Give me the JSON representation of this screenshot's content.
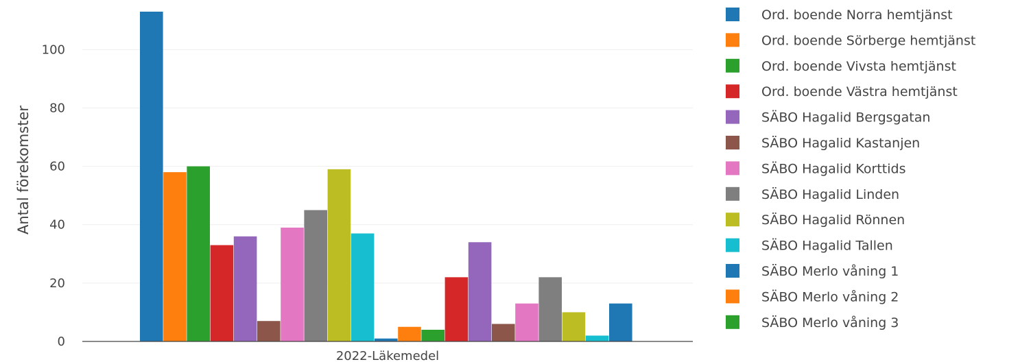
{
  "chart_data": {
    "type": "bar",
    "title": "",
    "xlabel": "",
    "ylabel": "Antal förekomster",
    "categories": [
      "2022-Läkemedel"
    ],
    "ylim": [
      0,
      113
    ],
    "yticks": [
      0,
      20,
      40,
      60,
      80,
      100
    ],
    "grid": true,
    "legend_position": "right",
    "series": [
      {
        "name": "Ord. boende Norra hemtjänst",
        "color": "#1f77b4",
        "values": [
          113
        ]
      },
      {
        "name": "Ord. boende Sörberge hemtjänst",
        "color": "#ff7f0e",
        "values": [
          58
        ]
      },
      {
        "name": "Ord. boende Vivsta hemtjänst",
        "color": "#2ca02c",
        "values": [
          60
        ]
      },
      {
        "name": "Ord. boende Västra hemtjänst",
        "color": "#d62728",
        "values": [
          33
        ]
      },
      {
        "name": "SÄBO Hagalid Bergsgatan",
        "color": "#9467bd",
        "values": [
          36
        ]
      },
      {
        "name": "SÄBO Hagalid Kastanjen",
        "color": "#8c564b",
        "values": [
          7
        ]
      },
      {
        "name": "SÄBO Hagalid Korttids",
        "color": "#e377c2",
        "values": [
          39
        ]
      },
      {
        "name": "SÄBO Hagalid Linden",
        "color": "#7f7f7f",
        "values": [
          45
        ]
      },
      {
        "name": "SÄBO Hagalid Rönnen",
        "color": "#bcbd22",
        "values": [
          59
        ]
      },
      {
        "name": "SÄBO Hagalid Tallen",
        "color": "#17becf",
        "values": [
          37
        ]
      },
      {
        "name": "SÄBO Merlo våning 1",
        "color": "#1f77b4",
        "values": [
          1
        ]
      },
      {
        "name": "SÄBO Merlo våning 2",
        "color": "#ff7f0e",
        "values": [
          5
        ]
      },
      {
        "name": "SÄBO Merlo våning 3",
        "color": "#2ca02c",
        "values": [
          4
        ]
      },
      {
        "color": "#d62728",
        "values": [
          22
        ]
      },
      {
        "color": "#9467bd",
        "values": [
          34
        ]
      },
      {
        "color": "#8c564b",
        "values": [
          6
        ]
      },
      {
        "color": "#e377c2",
        "values": [
          13
        ]
      },
      {
        "color": "#7f7f7f",
        "values": [
          22
        ]
      },
      {
        "color": "#bcbd22",
        "values": [
          10
        ]
      },
      {
        "color": "#17becf",
        "values": [
          2
        ]
      },
      {
        "color": "#1f77b4",
        "values": [
          13
        ]
      }
    ]
  }
}
